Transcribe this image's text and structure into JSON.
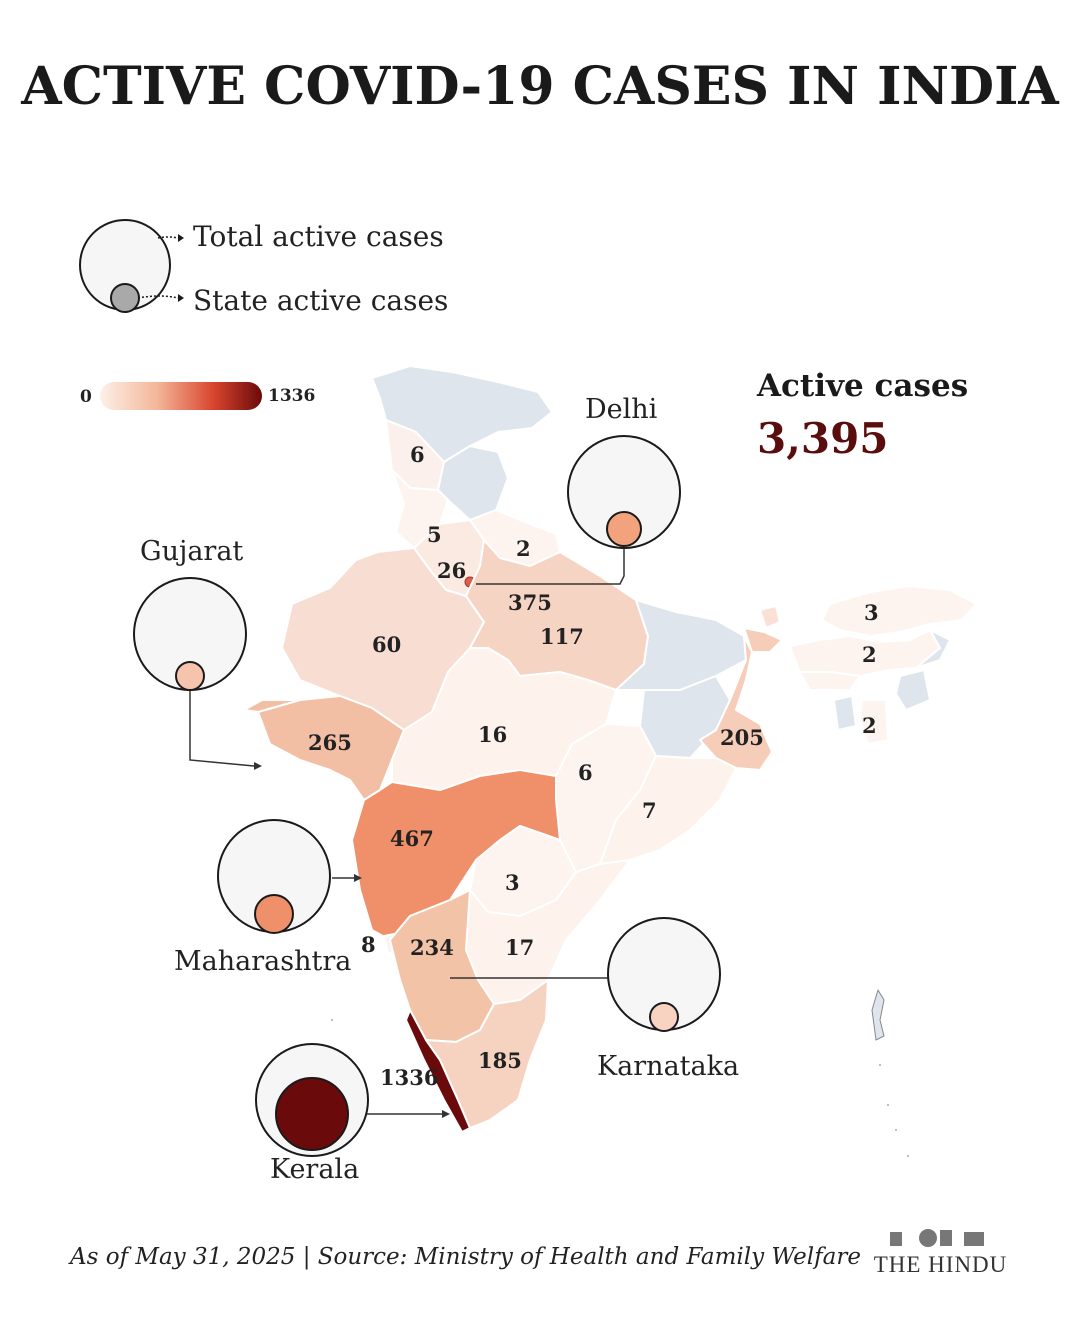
{
  "title": "ACTIVE COVID-19 CASES IN INDIA",
  "legend": {
    "total_label": "Total active cases",
    "state_label": "State active cases"
  },
  "scale": {
    "min_label": "0",
    "max_label": "1336",
    "colors": [
      "#fdf0e8",
      "#f3b79a",
      "#d9452e",
      "#6b0a0a"
    ]
  },
  "summary": {
    "title": "Active cases",
    "value": "3,395"
  },
  "colors": {
    "no_data": "#dfe5ec",
    "background": "#ffffff",
    "kerala": "#6b0a0a",
    "maharashtra": "#f0906a"
  },
  "state_values": [
    {
      "state": "Himachal Pradesh",
      "value": "6"
    },
    {
      "state": "Punjab",
      "value": "5"
    },
    {
      "state": "Uttarakhand",
      "value": "2"
    },
    {
      "state": "Haryana",
      "value": "26"
    },
    {
      "state": "Delhi",
      "value": "375"
    },
    {
      "state": "Uttar Pradesh",
      "value": "117"
    },
    {
      "state": "Rajasthan",
      "value": "60"
    },
    {
      "state": "Gujarat",
      "value": "265"
    },
    {
      "state": "Madhya Pradesh",
      "value": "16"
    },
    {
      "state": "Chhattisgarh",
      "value": "6"
    },
    {
      "state": "Odisha",
      "value": "7"
    },
    {
      "state": "West Bengal",
      "value": "205"
    },
    {
      "state": "Maharashtra",
      "value": "467"
    },
    {
      "state": "Telangana",
      "value": "3"
    },
    {
      "state": "Andhra Pradesh",
      "value": "17"
    },
    {
      "state": "Goa",
      "value": "8"
    },
    {
      "state": "Karnataka",
      "value": "234"
    },
    {
      "state": "Tamil Nadu",
      "value": "185"
    },
    {
      "state": "Kerala",
      "value": "1336"
    },
    {
      "state": "Arunachal Pradesh",
      "value": "3"
    },
    {
      "state": "Assam",
      "value": "2"
    },
    {
      "state": "Mizoram",
      "value": "2"
    }
  ],
  "callouts": [
    {
      "name": "Delhi",
      "value": 375
    },
    {
      "name": "Gujarat",
      "value": 265
    },
    {
      "name": "Maharashtra",
      "value": 467
    },
    {
      "name": "Karnataka",
      "value": 234
    },
    {
      "name": "Kerala",
      "value": 1336
    }
  ],
  "footer": "As of May 31, 2025 | Source: Ministry of Health and Family Welfare",
  "publisher": "THE HINDU"
}
